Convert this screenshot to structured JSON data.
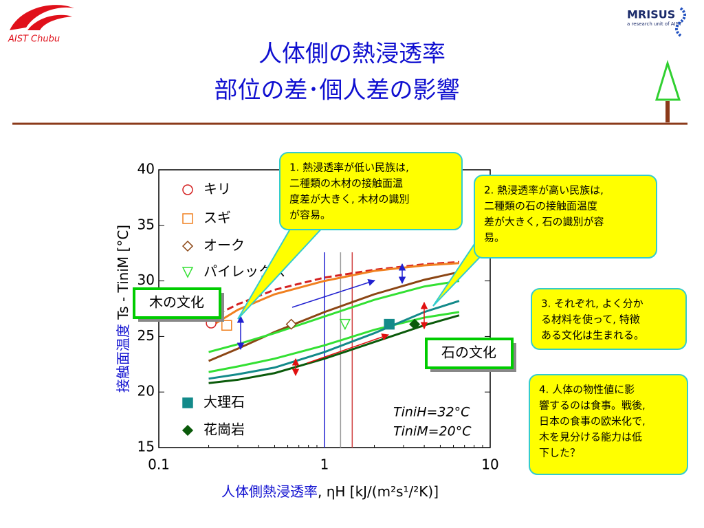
{
  "header": {
    "logo_left": "AIST Chubu",
    "logo_right": "MRISUS",
    "logo_right_sub": "a research unit of AIST",
    "title_lines": [
      "人体側の熱浸透率",
      "部位の差･個人差の影響"
    ]
  },
  "chart_data": {
    "type": "line",
    "xlabel_jp": "人体側熱浸透率",
    "xlabel_sym": ", ηH [kJ/(m²s¹/²K)]",
    "ylabel_jp": "接触面温度",
    "ylabel_sym": " Ts - TiniM [°C]",
    "xscale": "log",
    "xlim": [
      0.1,
      10
    ],
    "xticks": [
      0.1,
      1,
      10
    ],
    "ylim": [
      15,
      40
    ],
    "yticks": [
      15,
      20,
      25,
      30,
      35,
      40
    ],
    "x": [
      0.2,
      0.3,
      0.5,
      1,
      2,
      4,
      6.5
    ],
    "series": [
      {
        "name": "キリ",
        "color": "#d42020",
        "dash": true,
        "marker": "circle",
        "filled": false,
        "marker_x": 0.207,
        "marker_y": 26.2,
        "values": [
          26.6,
          27.9,
          29.2,
          30.3,
          31.0,
          31.5,
          31.7
        ]
      },
      {
        "name": "スギ",
        "color": "#f08020",
        "dash": false,
        "marker": "square",
        "filled": false,
        "marker_x": 0.257,
        "marker_y": 26.0,
        "values": [
          25.8,
          27.4,
          28.8,
          30.0,
          30.9,
          31.4,
          31.6
        ]
      },
      {
        "name": "オーク",
        "color": "#8b4513",
        "dash": false,
        "marker": "diamond",
        "filled": false,
        "marker_x": 0.63,
        "marker_y": 26.1,
        "values": [
          22.8,
          23.9,
          25.4,
          27.2,
          28.8,
          30.1,
          30.8
        ]
      },
      {
        "name": "パイレックス",
        "color": "#33e033",
        "dash": false,
        "marker": "triangle",
        "filled": false,
        "marker_x": 1.33,
        "marker_y": 26.1,
        "values": [
          23.6,
          24.3,
          25.3,
          26.8,
          28.3,
          29.5,
          30.0
        ]
      },
      {
        "color": "#33e033",
        "dash": false,
        "values": [
          21.8,
          22.3,
          23.0,
          24.2,
          25.6,
          26.7,
          27.2
        ]
      },
      {
        "name": "大理石",
        "color": "#138a8a",
        "dash": false,
        "marker": "square",
        "filled": true,
        "marker_x": 2.46,
        "marker_y": 26.1,
        "values": [
          21.2,
          21.6,
          22.2,
          23.6,
          25.3,
          27.2,
          28.2
        ]
      },
      {
        "name": "花崗岩",
        "color": "#0a5a0a",
        "dash": false,
        "marker": "diamond",
        "filled": true,
        "marker_x": 3.5,
        "marker_y": 26.1,
        "values": [
          20.8,
          21.1,
          21.7,
          23.0,
          24.5,
          26.0,
          26.9
        ]
      }
    ],
    "vlines": [
      {
        "x": 1.0,
        "color": "#2020d0"
      },
      {
        "x": 1.25,
        "color": "#999999"
      },
      {
        "x": 1.47,
        "color": "#d04040"
      }
    ],
    "annotations": [
      "TiniH=32°C",
      "TiniM=20°C"
    ]
  },
  "labels": {
    "wood": "木の文化",
    "stone": "石の文化"
  },
  "callouts": [
    [
      "1.  熱浸透率が低い民族は,",
      "二種類の木材の接触面温",
      "度差が大きく, 木材の識別",
      "が容易。"
    ],
    [
      "2.  熱浸透率が高い民族は,",
      "二種類の石の接触面温度",
      "差が大きく, 石の識別が容",
      "易。"
    ],
    [
      "3.  それぞれ, よく分か",
      "る材料を使って, 特徴",
      "ある文化は生まれる。"
    ],
    [
      "4.  人体の物性値に影",
      "響するのは食事。戦後,",
      "日本の食事の欧米化で,",
      "木を見分ける能力は低",
      "下した？"
    ]
  ]
}
